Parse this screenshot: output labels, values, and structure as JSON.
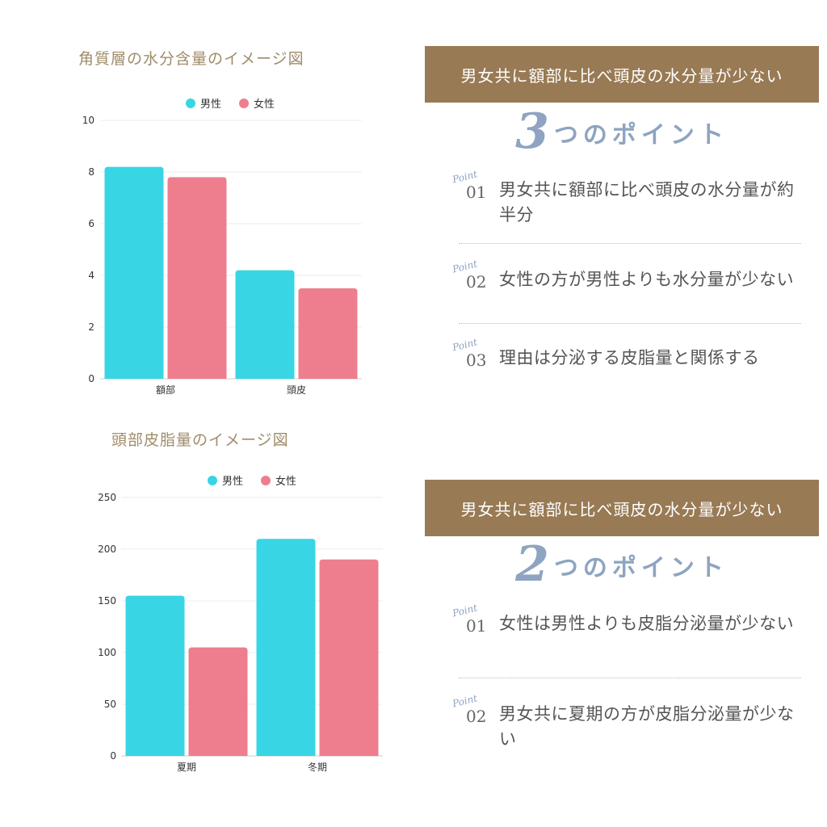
{
  "chart_data": [
    {
      "type": "bar",
      "title": "角質層の水分含量のイメージ図",
      "categories": [
        "額部",
        "頭皮"
      ],
      "series": [
        {
          "name": "男性",
          "values": [
            8.2,
            4.2
          ]
        },
        {
          "name": "女性",
          "values": [
            7.8,
            3.5
          ]
        }
      ],
      "ylim": [
        0,
        10
      ],
      "yticks": [
        0,
        2,
        4,
        6,
        8,
        10
      ],
      "legend": "top-center",
      "grid": true
    },
    {
      "type": "bar",
      "title": "頭部皮脂量のイメージ図",
      "categories": [
        "夏期",
        "冬期"
      ],
      "series": [
        {
          "name": "男性",
          "values": [
            155,
            210
          ]
        },
        {
          "name": "女性",
          "values": [
            105,
            190
          ]
        }
      ],
      "ylim": [
        0,
        250
      ],
      "yticks": [
        0,
        50,
        100,
        150,
        200,
        250
      ],
      "legend": "top-center",
      "grid": true
    }
  ],
  "colors": {
    "male": "#38d6e4",
    "female": "#ee7e8e",
    "banner": "#987a54",
    "accent": "#8ea4c0"
  },
  "sections": [
    {
      "banner": "男女共に額部に比べ頭皮の水分量が少ない",
      "heading_num": "3",
      "heading_text": "つのポイント",
      "points": [
        {
          "tag": "Point",
          "num": "01",
          "text": "男女共に額部に比べ頭皮の水分量が約半分"
        },
        {
          "tag": "Point",
          "num": "02",
          "text": "女性の方が男性よりも水分量が少ない"
        },
        {
          "tag": "Point",
          "num": "03",
          "text": "理由は分泌する皮脂量と関係する"
        }
      ]
    },
    {
      "banner": "男女共に額部に比べ頭皮の水分量が少ない",
      "heading_num": "2",
      "heading_text": "つのポイント",
      "points": [
        {
          "tag": "Point",
          "num": "01",
          "text": "女性は男性よりも皮脂分泌量が少ない"
        },
        {
          "tag": "Point",
          "num": "02",
          "text": "男女共に夏期の方が皮脂分泌量が少ない"
        }
      ]
    }
  ]
}
